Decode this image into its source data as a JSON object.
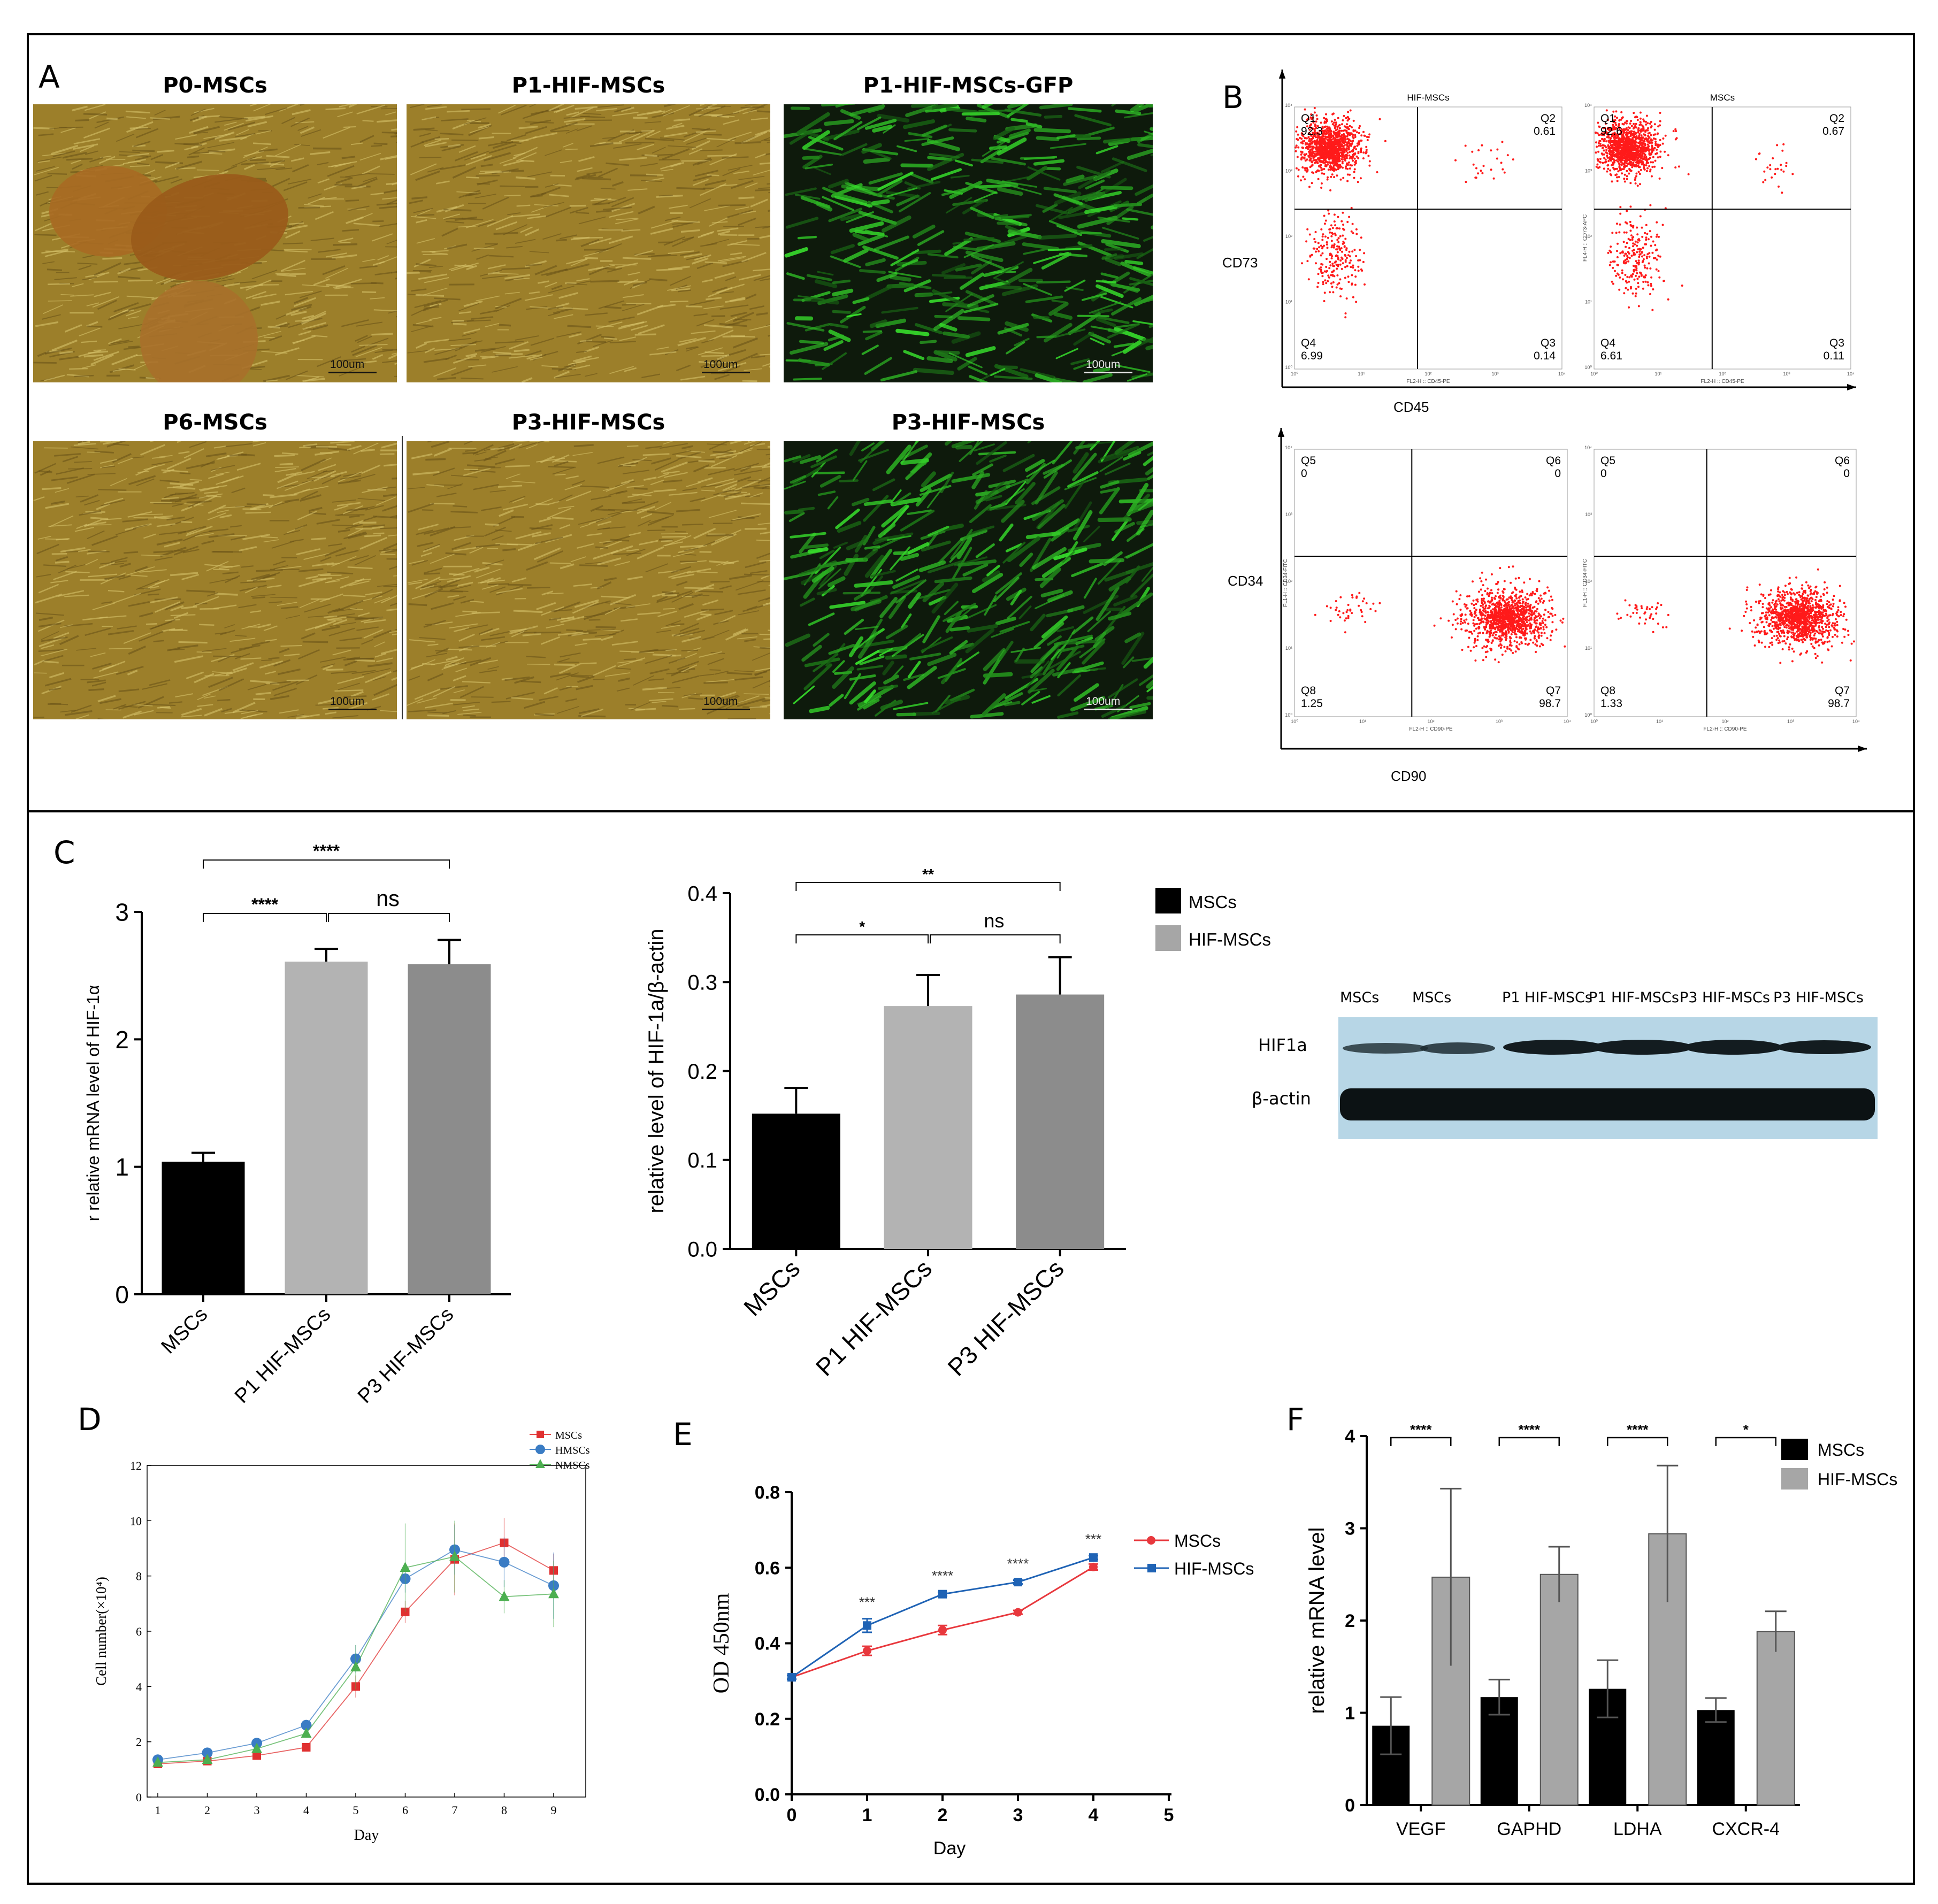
{
  "panel_letters": {
    "A": "A",
    "B": "B",
    "C": "C",
    "D": "D",
    "E": "E",
    "F": "F"
  },
  "panel_a": {
    "images": [
      {
        "title": "P0-MSCs",
        "scale": "100um",
        "kind": "brightfield-p0"
      },
      {
        "title": "P1-HIF-MSCs",
        "scale": "100um",
        "kind": "brightfield"
      },
      {
        "title": "P1-HIF-MSCs-GFP",
        "scale": "100um",
        "kind": "fluorescence"
      },
      {
        "title": "P6-MSCs",
        "scale": "100um",
        "kind": "brightfield"
      },
      {
        "title": "P3-HIF-MSCs",
        "scale": "100um",
        "kind": "brightfield"
      },
      {
        "title": "P3-HIF-MSCs",
        "scale": "100um",
        "kind": "fluorescence"
      }
    ]
  },
  "panel_b": {
    "top_axis_y": "CD73",
    "top_axis_x": "CD45",
    "bottom_axis_y": "CD34",
    "bottom_axis_x": "CD90",
    "plots": [
      {
        "title": "HIF-MSCs",
        "xlab": "FL2-H :: CD45-PE",
        "ylab": "",
        "q": [
          [
            "Q1",
            "92.3"
          ],
          [
            "Q2",
            "0.61"
          ],
          [
            "Q3",
            "0.14"
          ],
          [
            "Q4",
            "6.99"
          ]
        ],
        "main": "ul"
      },
      {
        "title": "MSCs",
        "xlab": "FL2-H :: CD45-PE",
        "ylab": "FL4-H :: CD73-APC",
        "q": [
          [
            "Q1",
            "92.6"
          ],
          [
            "Q2",
            "0.67"
          ],
          [
            "Q3",
            "0.11"
          ],
          [
            "Q4",
            "6.61"
          ]
        ],
        "main": "ul"
      },
      {
        "title": "",
        "xlab": "FL2-H :: CD90-PE",
        "ylab": "FL1-H :: CD34-FITC",
        "q": [
          [
            "Q5",
            "0"
          ],
          [
            "Q6",
            "0"
          ],
          [
            "Q7",
            "98.7"
          ],
          [
            "Q8",
            "1.25"
          ]
        ],
        "main": "lr"
      },
      {
        "title": "",
        "xlab": "FL2-H :: CD90-PE",
        "ylab": "FL1-H :: CD34-FITC",
        "q": [
          [
            "Q5",
            "0"
          ],
          [
            "Q6",
            "0"
          ],
          [
            "Q7",
            "98.7"
          ],
          [
            "Q8",
            "1.33"
          ]
        ],
        "main": "lr"
      }
    ]
  },
  "western_blot": {
    "lanes": [
      "MSCs",
      "MSCs",
      "P1 HIF-MSCs",
      "P1 HIF-MSCs",
      "P3 HIF-MSCs",
      "P3 HIF-MSCs"
    ],
    "rows": [
      "HIF1a",
      "β-actin"
    ]
  },
  "chart_data": [
    {
      "id": "C-left",
      "type": "bar",
      "categories": [
        "MSCs",
        "P1 HIF-MSCs",
        "P3 HIF-MSCs"
      ],
      "values": [
        1.04,
        2.61,
        2.59
      ],
      "errors": [
        0.07,
        0.1,
        0.19
      ],
      "colors": [
        "#000000",
        "#b3b3b3",
        "#8c8c8c"
      ],
      "ylabel": "r  relative mRNA level of HIF-1α",
      "ylim": [
        0,
        3
      ],
      "yticks": [
        0,
        1,
        2,
        3
      ],
      "significance": [
        {
          "from": 0,
          "to": 1,
          "label": "****"
        },
        {
          "from": 1,
          "to": 2,
          "label": "ns"
        },
        {
          "from": 0,
          "to": 2,
          "label": "****"
        }
      ]
    },
    {
      "id": "C-mid",
      "type": "bar",
      "categories": [
        "MSCs",
        "P1 HIF-MSCs",
        "P3 HIF-MSCs"
      ],
      "values": [
        0.152,
        0.273,
        0.286
      ],
      "errors": [
        0.029,
        0.035,
        0.042
      ],
      "colors": [
        "#000000",
        "#b3b3b3",
        "#8c8c8c"
      ],
      "ylabel": "relative level of HIF-1a/β-actin",
      "ylim": [
        0,
        0.4
      ],
      "yticks": [
        "0.0",
        "0.1",
        "0.2",
        "0.3",
        "0.4"
      ],
      "legend": [
        {
          "name": "MSCs",
          "color": "#000000"
        },
        {
          "name": "HIF-MSCs",
          "color": "#a6a6a6"
        }
      ],
      "significance": [
        {
          "from": 0,
          "to": 1,
          "label": "*"
        },
        {
          "from": 1,
          "to": 2,
          "label": "ns"
        },
        {
          "from": 0,
          "to": 2,
          "label": "**"
        }
      ]
    },
    {
      "id": "D",
      "type": "line",
      "x": [
        1,
        2,
        3,
        4,
        5,
        6,
        7,
        8,
        9
      ],
      "xlabel": "Day",
      "ylabel": "Cell number(×10⁴)",
      "ylim": [
        0,
        12
      ],
      "yticks": [
        0,
        2,
        4,
        6,
        8,
        10,
        12
      ],
      "series": [
        {
          "name": "MSCs",
          "color": "#e03030",
          "marker": "square",
          "values": [
            1.2,
            1.3,
            1.5,
            1.8,
            4.0,
            6.7,
            8.6,
            9.2,
            8.2
          ],
          "errors": [
            0.1,
            0.1,
            0.1,
            0.1,
            0.4,
            0.4,
            1.3,
            0.9,
            0.6
          ]
        },
        {
          "name": "HMSCs",
          "color": "#3a7cc4",
          "marker": "circle",
          "values": [
            1.35,
            1.6,
            1.95,
            2.6,
            5.0,
            7.9,
            8.95,
            8.5,
            7.65
          ],
          "errors": [
            0.1,
            0.1,
            0.1,
            0.1,
            0.5,
            0.5,
            0.9,
            0.9,
            1.2
          ]
        },
        {
          "name": "NMSCs",
          "color": "#4caf50",
          "marker": "triangle",
          "values": [
            1.25,
            1.35,
            1.75,
            2.3,
            4.7,
            8.3,
            8.7,
            7.25,
            7.35
          ],
          "errors": [
            0.1,
            0.1,
            0.1,
            0.1,
            0.8,
            1.6,
            1.3,
            0.6,
            1.2
          ]
        }
      ]
    },
    {
      "id": "E",
      "type": "line",
      "x": [
        0,
        1,
        2,
        3,
        4
      ],
      "xticks": [
        0,
        1,
        2,
        3,
        4,
        5
      ],
      "xlabel": "Day",
      "ylabel": "OD 450nm",
      "ylim": [
        0,
        0.8
      ],
      "yticks": [
        "0.0",
        "0.2",
        "0.4",
        "0.6",
        "0.8"
      ],
      "series": [
        {
          "name": "MSCs",
          "color": "#e8383d",
          "marker": "circle",
          "values": [
            0.31,
            0.38,
            0.435,
            0.482,
            0.602
          ],
          "errors": [
            0.005,
            0.012,
            0.012,
            0.005,
            0.008
          ]
        },
        {
          "name": "HIF-MSCs",
          "color": "#1f63b5",
          "marker": "square",
          "values": [
            0.31,
            0.447,
            0.53,
            0.562,
            0.627
          ],
          "errors": [
            0.005,
            0.018,
            0.005,
            0.005,
            0.005
          ]
        }
      ],
      "annotations": [
        {
          "x": 1,
          "label": "***"
        },
        {
          "x": 2,
          "label": "****"
        },
        {
          "x": 3,
          "label": "****"
        },
        {
          "x": 4,
          "label": "***"
        }
      ]
    },
    {
      "id": "F",
      "type": "bar",
      "categories": [
        "VEGF",
        "GAPHD",
        "LDHA",
        "CXCR-4"
      ],
      "ylabel": "relative mRNA level",
      "ylim": [
        0,
        4
      ],
      "yticks": [
        0,
        1,
        2,
        3,
        4
      ],
      "series": [
        {
          "name": "MSCs",
          "color": "#000000",
          "values": [
            0.86,
            1.17,
            1.26,
            1.03
          ],
          "errors": [
            0.31,
            0.19,
            0.31,
            0.13
          ]
        },
        {
          "name": "HIF-MSCs",
          "color": "#a6a6a6",
          "values": [
            2.47,
            2.5,
            2.94,
            1.88
          ],
          "errors": [
            0.96,
            0.3,
            0.74,
            0.22
          ]
        }
      ],
      "significance": [
        "****",
        "****",
        "****",
        "*"
      ]
    }
  ]
}
